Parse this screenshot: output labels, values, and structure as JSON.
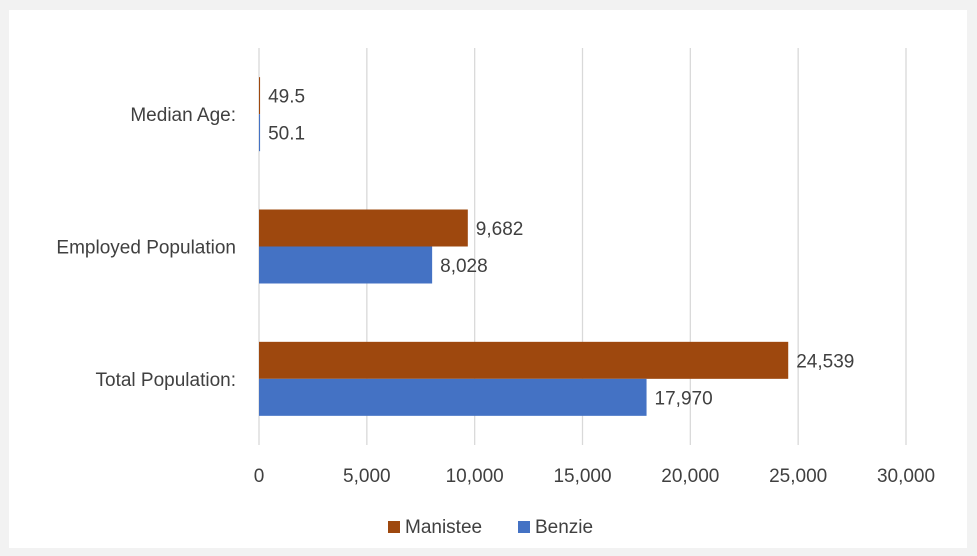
{
  "chart_data": {
    "type": "bar",
    "orientation": "horizontal",
    "categories": [
      "Median Age:",
      "Employed Population",
      "Total Population:"
    ],
    "series": [
      {
        "name": "Manistee",
        "values": [
          49.5,
          9682,
          24539
        ],
        "labels": [
          "49.5",
          "9,682",
          "24,539"
        ],
        "color": "#9e480e"
      },
      {
        "name": "Benzie",
        "values": [
          50.1,
          8028,
          17970
        ],
        "labels": [
          "50.1",
          "8,028",
          "17,970"
        ],
        "color": "#4472c4"
      }
    ],
    "xlim": [
      0,
      30000
    ],
    "xticks": [
      0,
      5000,
      10000,
      15000,
      20000,
      25000,
      30000
    ],
    "xtick_labels": [
      "0",
      "5,000",
      "10,000",
      "15,000",
      "20,000",
      "25,000",
      "30,000"
    ],
    "grid": "vertical",
    "legend": "bottom"
  }
}
